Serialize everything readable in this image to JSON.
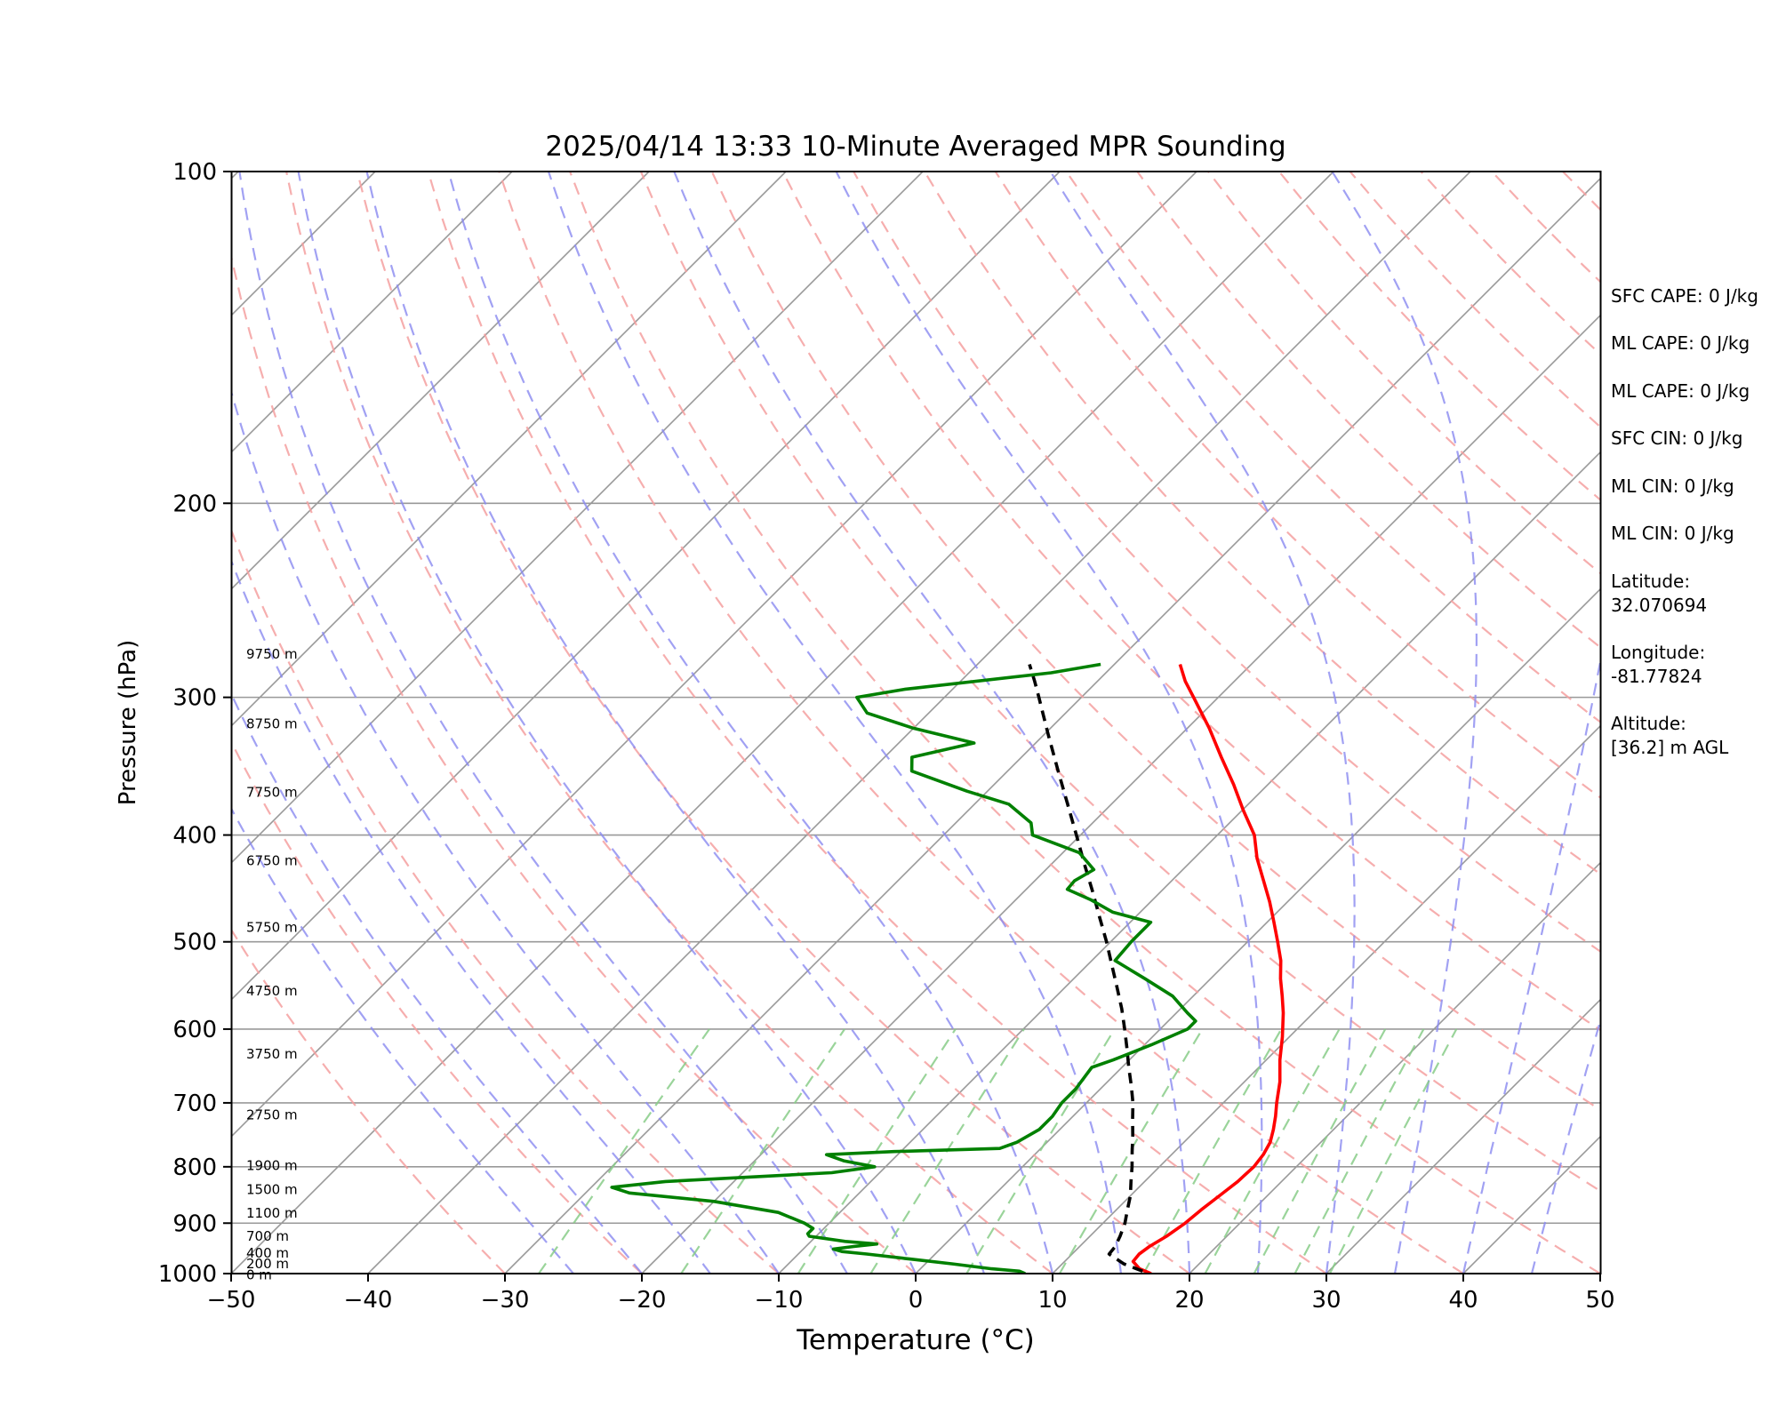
{
  "chart_data": {
    "type": "line",
    "title": "2025/04/14 13:33 10-Minute Averaged MPR Sounding",
    "xlabel": "Temperature (°C)",
    "ylabel": "Pressure (hPa)",
    "xlim": [
      -50,
      50
    ],
    "ylim": [
      1000,
      100
    ],
    "y_scale": "log",
    "x_ticks": [
      "−50",
      "−40",
      "−30",
      "−20",
      "−10",
      "0",
      "10",
      "20",
      "30",
      "40",
      "50"
    ],
    "y_ticks": [
      "100",
      "200",
      "300",
      "400",
      "500",
      "600",
      "700",
      "800",
      "900",
      "1000"
    ],
    "skew": "skew-T log-P",
    "background_lines": {
      "dry_adiabats_color": "#f4a0a0",
      "moist_adiabats_color": "#8a8af0",
      "mixing_ratio_color": "#88cc88",
      "isotherm_color": "#999999"
    },
    "height_labels": [
      {
        "label": "0 m",
        "pressure": 1003
      },
      {
        "label": "200 m",
        "pressure": 980
      },
      {
        "label": "400 m",
        "pressure": 958
      },
      {
        "label": "700 m",
        "pressure": 925
      },
      {
        "label": "1100 m",
        "pressure": 881
      },
      {
        "label": "1500 m",
        "pressure": 839
      },
      {
        "label": "1900 m",
        "pressure": 798
      },
      {
        "label": "2750 m",
        "pressure": 718
      },
      {
        "label": "3750 m",
        "pressure": 632
      },
      {
        "label": "4750 m",
        "pressure": 554
      },
      {
        "label": "5750 m",
        "pressure": 485
      },
      {
        "label": "6750 m",
        "pressure": 422
      },
      {
        "label": "7750 m",
        "pressure": 366
      },
      {
        "label": "8750 m",
        "pressure": 317
      },
      {
        "label": "9750 m",
        "pressure": 274
      }
    ],
    "series": [
      {
        "color": "#ff0000",
        "points": [
          [
            1000,
            17.2
          ],
          [
            990,
            16.0
          ],
          [
            975,
            15.0
          ],
          [
            960,
            14.9
          ],
          [
            945,
            15.1
          ],
          [
            925,
            15.6
          ],
          [
            900,
            16.0
          ],
          [
            875,
            16.2
          ],
          [
            850,
            16.5
          ],
          [
            825,
            16.8
          ],
          [
            800,
            16.9
          ],
          [
            780,
            16.7
          ],
          [
            760,
            16.3
          ],
          [
            740,
            15.6
          ],
          [
            720,
            14.8
          ],
          [
            700,
            13.9
          ],
          [
            670,
            12.6
          ],
          [
            640,
            11.0
          ],
          [
            610,
            9.5
          ],
          [
            580,
            7.8
          ],
          [
            560,
            6.5
          ],
          [
            540,
            5.1
          ],
          [
            520,
            3.8
          ],
          [
            500,
            2.2
          ],
          [
            480,
            0.5
          ],
          [
            460,
            -1.3
          ],
          [
            440,
            -3.3
          ],
          [
            420,
            -5.4
          ],
          [
            400,
            -7.3
          ],
          [
            380,
            -9.9
          ],
          [
            360,
            -12.5
          ],
          [
            340,
            -15.4
          ],
          [
            320,
            -18.4
          ],
          [
            300,
            -21.8
          ],
          [
            290,
            -23.6
          ],
          [
            280,
            -25.2
          ]
        ]
      },
      {
        "color": "#000000",
        "points": [
          [
            995,
            16.4
          ],
          [
            980,
            14.5
          ],
          [
            960,
            12.7
          ],
          [
            945,
            12.6
          ],
          [
            925,
            12.2
          ],
          [
            900,
            11.6
          ],
          [
            875,
            10.8
          ],
          [
            850,
            10.0
          ],
          [
            825,
            9.0
          ],
          [
            800,
            8.0
          ],
          [
            775,
            6.9
          ],
          [
            750,
            5.8
          ],
          [
            725,
            4.6
          ],
          [
            700,
            3.4
          ],
          [
            675,
            2.0
          ],
          [
            650,
            0.5
          ],
          [
            625,
            -1.0
          ],
          [
            600,
            -2.6
          ],
          [
            575,
            -4.3
          ],
          [
            550,
            -6.2
          ],
          [
            525,
            -8.2
          ],
          [
            500,
            -10.3
          ],
          [
            475,
            -12.6
          ],
          [
            450,
            -15.0
          ],
          [
            425,
            -17.6
          ],
          [
            400,
            -20.3
          ],
          [
            375,
            -23.2
          ],
          [
            350,
            -26.3
          ],
          [
            325,
            -29.6
          ],
          [
            300,
            -33.1
          ],
          [
            290,
            -34.6
          ],
          [
            280,
            -36.2
          ]
        ]
      },
      {
        "color": "#008000",
        "points": [
          [
            1000,
            8.0
          ],
          [
            995,
            7.4
          ],
          [
            990,
            5.2
          ],
          [
            980,
            2.0
          ],
          [
            970,
            -1.5
          ],
          [
            960,
            -5.0
          ],
          [
            955,
            -7.0
          ],
          [
            950,
            -7.8
          ],
          [
            945,
            -6.5
          ],
          [
            940,
            -5.0
          ],
          [
            935,
            -7.5
          ],
          [
            925,
            -10.5
          ],
          [
            920,
            -10.8
          ],
          [
            910,
            -10.8
          ],
          [
            900,
            -11.8
          ],
          [
            880,
            -14.5
          ],
          [
            860,
            -20.0
          ],
          [
            845,
            -26.8
          ],
          [
            835,
            -28.5
          ],
          [
            825,
            -25.0
          ],
          [
            810,
            -13.5
          ],
          [
            800,
            -10.8
          ],
          [
            790,
            -13.5
          ],
          [
            780,
            -15.2
          ],
          [
            775,
            -10.5
          ],
          [
            770,
            -3.0
          ],
          [
            760,
            -2.2
          ],
          [
            740,
            -1.5
          ],
          [
            720,
            -1.5
          ],
          [
            700,
            -1.8
          ],
          [
            680,
            -1.8
          ],
          [
            665,
            -2.0
          ],
          [
            650,
            -2.2
          ],
          [
            640,
            -1.2
          ],
          [
            620,
            0.5
          ],
          [
            600,
            2.0
          ],
          [
            590,
            2.0
          ],
          [
            580,
            0.8
          ],
          [
            560,
            -1.5
          ],
          [
            540,
            -4.8
          ],
          [
            520,
            -8.3
          ],
          [
            500,
            -8.5
          ],
          [
            480,
            -8.5
          ],
          [
            470,
            -12.0
          ],
          [
            458,
            -14.5
          ],
          [
            448,
            -17.0
          ],
          [
            440,
            -17.1
          ],
          [
            430,
            -16.5
          ],
          [
            415,
            -18.8
          ],
          [
            400,
            -23.5
          ],
          [
            390,
            -24.5
          ],
          [
            375,
            -27.5
          ],
          [
            365,
            -31.5
          ],
          [
            350,
            -37.0
          ],
          [
            340,
            -38.0
          ],
          [
            330,
            -34.5
          ],
          [
            320,
            -40.0
          ],
          [
            310,
            -44.5
          ],
          [
            300,
            -46.4
          ],
          [
            295,
            -43.5
          ],
          [
            285,
            -34.0
          ],
          [
            280,
            -31.0
          ]
        ]
      }
    ]
  },
  "info": {
    "sfc_cape": "SFC CAPE: 0 J/kg",
    "ml_cape_1": "ML CAPE: 0 J/kg",
    "ml_cape_2": "ML CAPE: 0 J/kg",
    "sfc_cin": "SFC CIN: 0 J/kg",
    "ml_cin_1": "ML CIN: 0 J/kg",
    "ml_cin_2": "ML CIN: 0 J/kg",
    "latitude_label": "Latitude:",
    "latitude_value": "32.070694",
    "longitude_label": "Longitude:",
    "longitude_value": "-81.77824",
    "altitude_label": "Altitude:",
    "altitude_value": "[36.2] m AGL"
  }
}
